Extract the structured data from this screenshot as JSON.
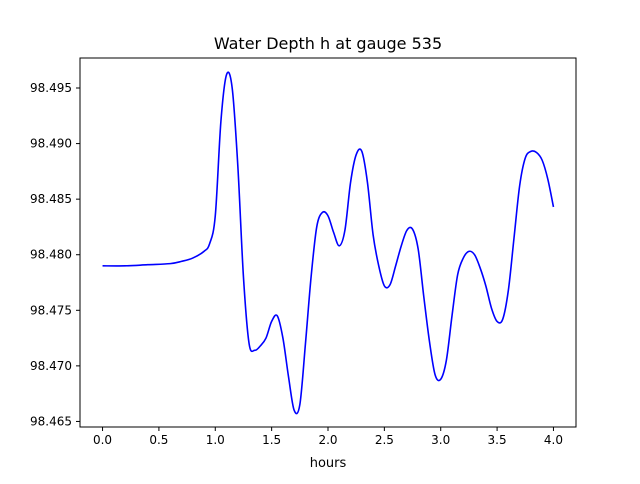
{
  "chart_data": {
    "type": "line",
    "title": "Water Depth h at gauge 535",
    "xlabel": "hours",
    "ylabel": "",
    "xlim": [
      -0.2,
      4.2
    ],
    "ylim": [
      98.4645,
      98.4977
    ],
    "x_ticks": [
      0.0,
      0.5,
      1.0,
      1.5,
      2.0,
      2.5,
      3.0,
      3.5,
      4.0
    ],
    "x_tick_labels": [
      "0.0",
      "0.5",
      "1.0",
      "1.5",
      "2.0",
      "2.5",
      "3.0",
      "3.5",
      "4.0"
    ],
    "y_ticks": [
      98.465,
      98.47,
      98.475,
      98.48,
      98.485,
      98.49,
      98.495
    ],
    "y_tick_labels": [
      "98.465",
      "98.470",
      "98.475",
      "98.480",
      "98.485",
      "98.490",
      "98.495"
    ],
    "grid": false,
    "legend": "none",
    "series": [
      {
        "color": "#0000ff",
        "x": [
          0.0,
          0.2,
          0.4,
          0.6,
          0.7,
          0.8,
          0.9,
          0.95,
          1.0,
          1.05,
          1.1,
          1.15,
          1.2,
          1.25,
          1.3,
          1.35,
          1.4,
          1.45,
          1.5,
          1.55,
          1.6,
          1.65,
          1.7,
          1.75,
          1.8,
          1.85,
          1.9,
          1.95,
          2.0,
          2.05,
          2.1,
          2.15,
          2.2,
          2.25,
          2.3,
          2.35,
          2.4,
          2.45,
          2.5,
          2.55,
          2.6,
          2.65,
          2.7,
          2.75,
          2.8,
          2.85,
          2.9,
          2.95,
          3.0,
          3.05,
          3.1,
          3.15,
          3.2,
          3.25,
          3.3,
          3.35,
          3.4,
          3.45,
          3.5,
          3.55,
          3.6,
          3.65,
          3.7,
          3.75,
          3.8,
          3.85,
          3.9,
          3.95,
          4.0
        ],
        "values": [
          98.479,
          98.479,
          98.4791,
          98.4792,
          98.4794,
          98.4797,
          98.4803,
          98.481,
          98.4835,
          98.492,
          98.4962,
          98.495,
          98.488,
          98.478,
          98.472,
          98.4714,
          98.4718,
          98.4725,
          98.474,
          98.4745,
          98.4725,
          98.469,
          98.466,
          98.4665,
          98.472,
          98.478,
          98.4825,
          98.4838,
          98.4835,
          98.482,
          98.4808,
          98.4822,
          98.4865,
          98.489,
          98.4893,
          98.4865,
          98.4818,
          98.479,
          98.4772,
          98.4773,
          98.479,
          98.4808,
          98.4822,
          98.4823,
          98.4805,
          98.4762,
          98.4722,
          98.4692,
          98.4688,
          98.4705,
          98.4745,
          98.4782,
          98.4797,
          98.4803,
          98.48,
          98.4788,
          98.4772,
          98.4752,
          98.474,
          98.4742,
          98.4768,
          98.4815,
          98.4862,
          98.4887,
          98.4893,
          98.4892,
          98.4885,
          98.4868,
          98.4843
        ]
      }
    ]
  }
}
